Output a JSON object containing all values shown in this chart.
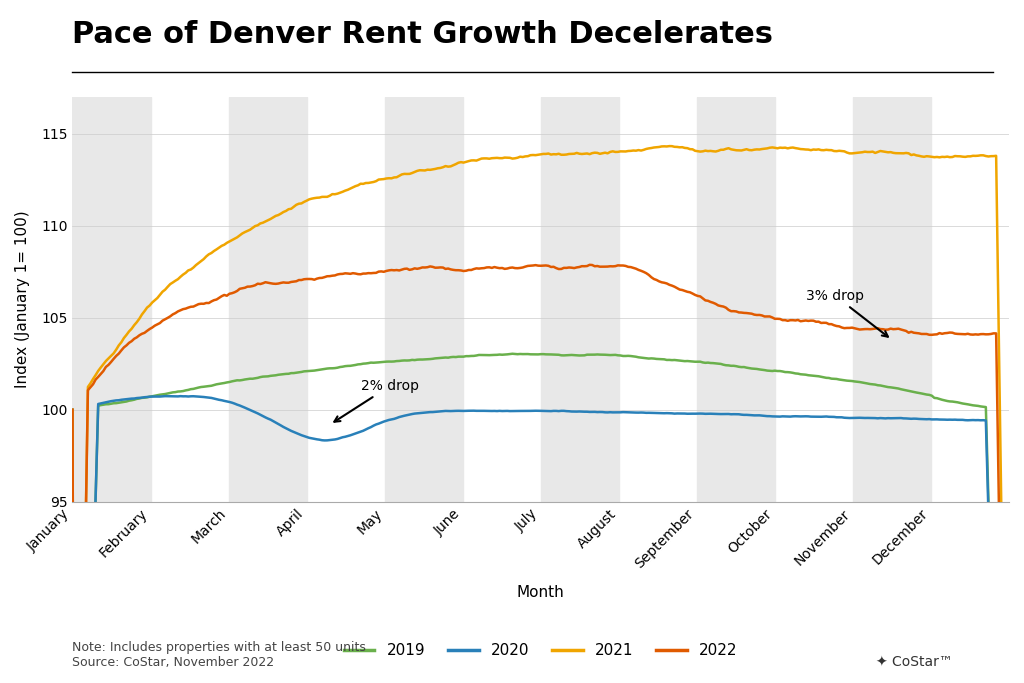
{
  "title": "Pace of Denver Rent Growth Decelerates",
  "xlabel": "Month",
  "ylabel": "Index (January 1= 100)",
  "ylim": [
    95,
    117
  ],
  "yticks": [
    95,
    100,
    105,
    110,
    115
  ],
  "months": [
    "January",
    "February",
    "March",
    "April",
    "May",
    "June",
    "July",
    "August",
    "September",
    "October",
    "November",
    "December"
  ],
  "colors": {
    "2019": "#6ab04c",
    "2020": "#2980b9",
    "2021": "#f0a500",
    "2022": "#e05a00"
  },
  "note": "Note: Includes properties with at least 50 units\nSource: CoStar, November 2022",
  "background_color": "#ffffff",
  "stripe_color": "#e8e8e8",
  "annotation_2pct": "2% drop",
  "annotation_3pct": "3% drop",
  "title_fontsize": 22,
  "axis_label_fontsize": 11,
  "tick_fontsize": 10,
  "legend_fontsize": 11,
  "note_fontsize": 9
}
